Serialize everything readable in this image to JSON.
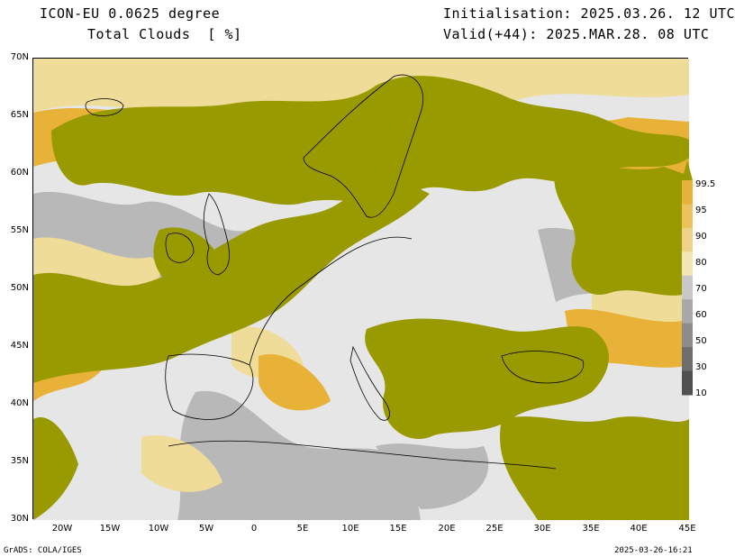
{
  "header": {
    "model": "ICON-EU 0.0625 degree",
    "field": "Total Clouds  [ %]",
    "init": "Initialisation: 2025.03.26. 12 UTC",
    "valid": "Valid(+44): 2025.MAR.28. 08 UTC"
  },
  "map": {
    "lat_labels": [
      "70N",
      "65N",
      "60N",
      "55N",
      "50N",
      "45N",
      "40N",
      "35N",
      "30N"
    ],
    "lon_labels": [
      "20W",
      "15W",
      "10W",
      "5W",
      "0",
      "5E",
      "10E",
      "15E",
      "20E",
      "25E",
      "30E",
      "35E",
      "40E",
      "45E"
    ],
    "cloud_colors": {
      "full": "#999900",
      "high": "#e8b238",
      "mid": "#eedc98",
      "low": "#b8b8b8",
      "clear": "#e6e6e6"
    }
  },
  "colorbar": {
    "labels": [
      "99.5",
      "95",
      "90",
      "80",
      "70",
      "60",
      "50",
      "30",
      "10"
    ],
    "colors": [
      "#999900",
      "#e8b238",
      "#ecc25c",
      "#efd28a",
      "#f2e6b4",
      "#c8c8c8",
      "#a8a8a8",
      "#8c8c8c",
      "#6e6e6e",
      "#505050"
    ]
  },
  "footer": {
    "left": "GrADS: COLA/IGES",
    "right": "2025-03-26-16:21"
  }
}
